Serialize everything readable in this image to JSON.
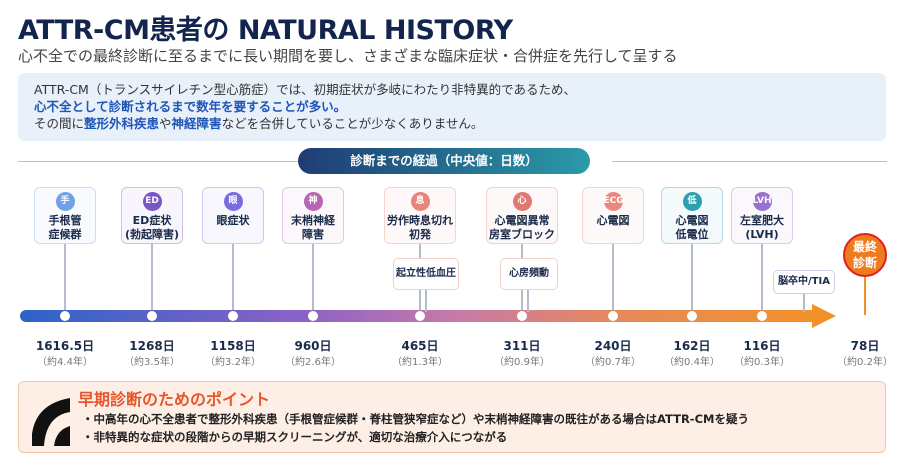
{
  "title": "ATTR-CM患者の NATURAL HISTORY",
  "subtitle": "心不全での最終診断に至るまでに長い期間を要し、さまざまな臨床症状・合併症を先行して呈する",
  "info": {
    "line1": "ATTR-CM（トランスサイレチン型心筋症）では、初期症状が多岐にわたり非特異的であるため、",
    "line2": "心不全として診断されるまで数年を要することが多い。",
    "line3_a": "その間に",
    "line3_b": "整形外科疾患",
    "line3_c": "や",
    "line3_d": "神経障害",
    "line3_e": "などを合併していることが少なくありません。"
  },
  "section_title": "診断までの経過（中央値：日数）",
  "events": [
    {
      "icon": "手",
      "label1": "手根管",
      "label2": "症候群",
      "days": "1616.5日",
      "years": "（約4.4年）",
      "color": "#6fa0e8"
    },
    {
      "icon": "ED",
      "label1": "ED症状",
      "label2": "(勃起障害)",
      "days": "1268日",
      "years": "（約3.5年）",
      "color": "#7a55c8"
    },
    {
      "icon": "眼",
      "label1": "眼症状",
      "label2": "",
      "days": "1158日",
      "years": "（約3.2年）",
      "color": "#7a6be0"
    },
    {
      "icon": "神",
      "label1": "末梢神経",
      "label2": "障害",
      "days": "960日",
      "years": "（約2.6年）",
      "color": "#b865b5"
    },
    {
      "icon": "息",
      "label1": "労作時息切れ",
      "label2": "初発",
      "days": "465日",
      "years": "（約1.3年）",
      "color": "#e8857a"
    },
    {
      "icon": "心",
      "label1": "心電図異常",
      "label2": "房室ブロック",
      "days": "311日",
      "years": "（約0.9年）",
      "color": "#e07a70"
    },
    {
      "icon": "ECG",
      "label1": "心電図",
      "label2": "",
      "days": "240日",
      "years": "（約0.7年）",
      "color": "#e88880"
    },
    {
      "icon": "低",
      "label1": "心電図",
      "label2": "低電位",
      "days": "162日",
      "years": "（約0.4年）",
      "color": "#2aa0b0"
    },
    {
      "icon": "LVH",
      "label1": "左室肥大",
      "label2": "(LVH)",
      "days": "116日",
      "years": "（約0.3年）",
      "color": "#9a70d0"
    }
  ],
  "sub_events": [
    "起立性低血圧",
    "心房頻動",
    "脳卒中/TIA"
  ],
  "final": {
    "line1": "最終",
    "line2": "診断",
    "days": "78日",
    "years": "（約0.2年）"
  },
  "points": {
    "title": "早期診断のためのポイント",
    "items": [
      "・中高年の心不全患者で整形外科疾患（手根管症候群・脊柱管狭窄症など）や末梢神経障害の既往がある場合はATTR-CMを疑う",
      "・非特異的な症状の段階からの早期スクリーニングが、適切な治療介入につながる"
    ]
  }
}
